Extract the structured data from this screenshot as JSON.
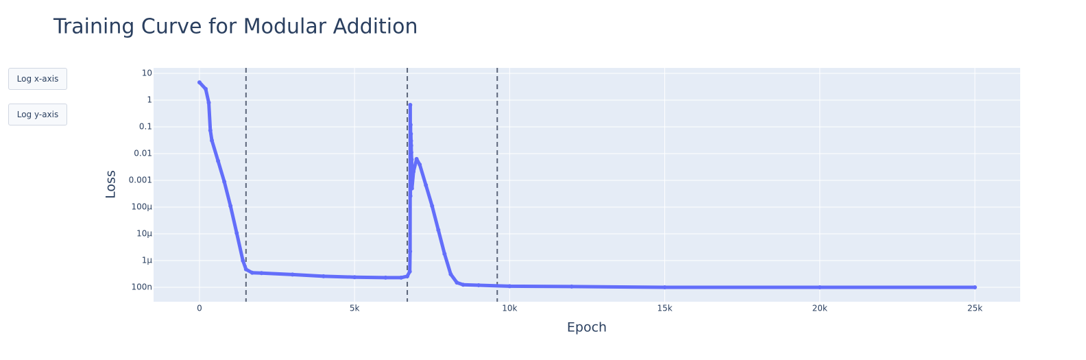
{
  "chart_data": {
    "type": "scatter",
    "title": "Training Curve for Modular Addition",
    "x_label": "Epoch",
    "y_label": "Loss",
    "buttons": [
      "Log x-axis",
      "Log y-axis"
    ],
    "color": "#636efa",
    "log_y": true,
    "grid": true,
    "x": [
      0,
      200,
      300,
      350,
      400,
      600,
      800,
      1000,
      1200,
      1400,
      1500,
      1700,
      2000,
      3000,
      4000,
      5000,
      6000,
      6500,
      6700,
      6780,
      6790,
      6795,
      6800,
      6805,
      6810,
      6815,
      6820,
      6825,
      6830,
      6840,
      6850,
      6900,
      7000,
      7100,
      7300,
      7500,
      7700,
      7900,
      8100,
      8300,
      8500,
      9000,
      10000,
      12000,
      15000,
      20000,
      25000
    ],
    "values": [
      4.6,
      2.6,
      0.8,
      0.074,
      0.031,
      0.0053,
      0.00089,
      0.00011,
      1.07e-05,
      1e-06,
      4.7e-07,
      3.5e-07,
      3.4e-07,
      3e-07,
      2.6e-07,
      2.4e-07,
      2.3e-07,
      2.3e-07,
      2.6e-07,
      3.9e-07,
      2.2e-06,
      0.66,
      0.00026,
      0.12,
      0.00066,
      0.055,
      0.03,
      0.02,
      0.011,
      0.006,
      0.0005,
      0.0021,
      0.0063,
      0.0039,
      0.00066,
      0.00011,
      1.4e-05,
      1.8e-06,
      3.1e-07,
      1.5e-07,
      1.25e-07,
      1.2e-07,
      1.1e-07,
      1.07e-07,
      1e-07,
      1e-07,
      1e-07
    ],
    "vertical_lines": [
      1500,
      6700,
      9600
    ],
    "xlim": [
      -1480,
      26460
    ],
    "xticks": [
      0,
      {
        "value": 5000,
        "label": "5k"
      },
      {
        "value": 10000,
        "label": "10k"
      },
      {
        "value": 15000,
        "label": "15k"
      },
      {
        "value": 20000,
        "label": "20k"
      },
      {
        "value": 25000,
        "label": "25k"
      }
    ],
    "ylim": [
      2.9e-08,
      16
    ],
    "yticks": [
      10,
      1,
      0.1,
      0.01,
      0.001,
      {
        "value": 0.0001,
        "label": "100μ"
      },
      {
        "value": 1e-05,
        "label": "10μ"
      },
      {
        "value": 1e-06,
        "label": "1μ"
      },
      {
        "value": 1e-07,
        "label": "100n"
      }
    ]
  }
}
